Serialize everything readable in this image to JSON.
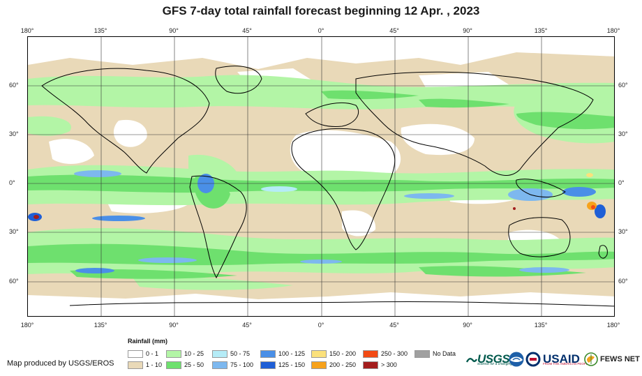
{
  "title": "GFS 7-day total rainfall forecast beginning 12 Apr. , 2023",
  "axes": {
    "longitude_ticks": [
      "180°",
      "135°",
      "90°",
      "45°",
      "0°",
      "45°",
      "90°",
      "135°",
      "180°"
    ],
    "latitude_ticks": [
      "60°",
      "30°",
      "0°",
      "30°",
      "60°"
    ]
  },
  "legend": {
    "title": "Rainfall (mm)",
    "items": [
      {
        "label": "0 - 1",
        "color": "#ffffff"
      },
      {
        "label": "1 - 10",
        "color": "#e9d9b8"
      },
      {
        "label": "10 - 25",
        "color": "#b3f5a6"
      },
      {
        "label": "25 - 50",
        "color": "#6ee06e"
      },
      {
        "label": "50 - 75",
        "color": "#b5ecf7"
      },
      {
        "label": "75 - 100",
        "color": "#7db8ef"
      },
      {
        "label": "100 - 125",
        "color": "#4a8fe7"
      },
      {
        "label": "125 - 150",
        "color": "#1f5fd6"
      },
      {
        "label": "150 - 200",
        "color": "#fbe17c"
      },
      {
        "label": "200 - 250",
        "color": "#f7a21b"
      },
      {
        "label": "250 - 300",
        "color": "#f24a14"
      },
      {
        "label": "> 300",
        "color": "#a31d1d"
      },
      {
        "label": "No Data",
        "color": "#a0a0a0"
      }
    ]
  },
  "credit": "Map produced by USGS/EROS",
  "logos": {
    "usgs": "USGS",
    "usgs_tagline": "science for a changing world",
    "usaid": "USAID",
    "usaid_tagline": "FROM THE AMERICAN PEOPLE",
    "fews": "FEWS NET"
  }
}
